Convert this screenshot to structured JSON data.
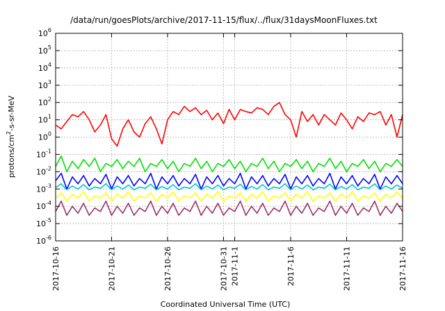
{
  "chart_data": {
    "type": "line",
    "title": "/data/run/goesPlots/archive/2017-11-15/flux/../flux/31daysMoonFluxes.txt",
    "xlabel": "Coordinated Universal Time (UTC)",
    "ylabel": {
      "prefix": "protons/cm",
      "sup": "2",
      "suffix": "-s-sr-MeV"
    },
    "y_scale": "log",
    "ylim": [
      1e-06,
      1000000.0
    ],
    "y_ticks": [
      {
        "base": "10",
        "exp": "-6",
        "value": 1e-06
      },
      {
        "base": "10",
        "exp": "-5",
        "value": 1e-05
      },
      {
        "base": "10",
        "exp": "-4",
        "value": 0.0001
      },
      {
        "base": "10",
        "exp": "-3",
        "value": 0.001
      },
      {
        "base": "10",
        "exp": "-2",
        "value": 0.01
      },
      {
        "base": "10",
        "exp": "-1",
        "value": 0.1
      },
      {
        "base": "10",
        "exp": "0",
        "value": 1
      },
      {
        "base": "10",
        "exp": "1",
        "value": 10
      },
      {
        "base": "10",
        "exp": "2",
        "value": 100
      },
      {
        "base": "10",
        "exp": "3",
        "value": 1000
      },
      {
        "base": "10",
        "exp": "4",
        "value": 10000
      },
      {
        "base": "10",
        "exp": "5",
        "value": 100000
      },
      {
        "base": "10",
        "exp": "6",
        "value": 1000000
      }
    ],
    "xlim": [
      "2017-10-16",
      "2017-11-16"
    ],
    "x_ticks": [
      "2017-10-16",
      "2017-10-21",
      "2017-10-26",
      "2017-10-31",
      "2017-11-1",
      "2017-11-6",
      "2017-11-11",
      "2017-11-16"
    ],
    "x_tick_days": [
      0,
      5,
      10,
      15,
      16,
      21,
      26,
      31
    ],
    "grid": true,
    "legend": "none",
    "series": [
      {
        "color": "#ff0000",
        "x_days": [
          0.0,
          0.5,
          1.0,
          1.5,
          2.0,
          2.5,
          3.0,
          3.5,
          4.0,
          4.5,
          5.0,
          5.5,
          6.0,
          6.5,
          7.0,
          7.5,
          8.0,
          8.5,
          9.0,
          9.5,
          10.0,
          10.5,
          11.0,
          11.5,
          12.0,
          12.5,
          13.0,
          13.5,
          14.0,
          14.5,
          15.0,
          15.5,
          16.0,
          16.5,
          17.0,
          17.5,
          18.0,
          18.5,
          19.0,
          19.5,
          20.0,
          20.5,
          21.0,
          21.5,
          22.0,
          22.5,
          23.0,
          23.5,
          24.0,
          24.5,
          25.0,
          25.5,
          26.0,
          26.5,
          27.0,
          27.5,
          28.0,
          28.5,
          29.0,
          29.5,
          30.0,
          30.5,
          31.0
        ],
        "values": [
          5,
          3,
          8,
          20,
          15,
          30,
          10,
          2,
          5,
          20,
          0.8,
          0.3,
          3,
          10,
          2,
          1,
          6,
          15,
          3,
          0.4,
          10,
          30,
          20,
          60,
          30,
          50,
          20,
          35,
          10,
          25,
          6,
          40,
          10,
          40,
          30,
          25,
          50,
          40,
          20,
          60,
          100,
          20,
          10,
          1,
          30,
          8,
          20,
          5,
          20,
          10,
          5,
          25,
          10,
          3,
          15,
          8,
          25,
          20,
          30,
          5,
          20,
          1,
          20
        ]
      },
      {
        "color": "#00e000",
        "x_days": [
          0.0,
          0.5,
          1.0,
          1.5,
          2.0,
          2.5,
          3.0,
          3.5,
          4.0,
          4.5,
          5.0,
          5.5,
          6.0,
          6.5,
          7.0,
          7.5,
          8.0,
          8.5,
          9.0,
          9.5,
          10.0,
          10.5,
          11.0,
          11.5,
          12.0,
          12.5,
          13.0,
          13.5,
          14.0,
          14.5,
          15.0,
          15.5,
          16.0,
          16.5,
          17.0,
          17.5,
          18.0,
          18.5,
          19.0,
          19.5,
          20.0,
          20.5,
          21.0,
          21.5,
          22.0,
          22.5,
          23.0,
          23.5,
          24.0,
          24.5,
          25.0,
          25.5,
          26.0,
          26.5,
          27.0,
          27.5,
          28.0,
          28.5,
          29.0,
          29.5,
          30.0,
          30.5,
          31.0
        ],
        "values": [
          0.02,
          0.08,
          0.01,
          0.04,
          0.015,
          0.05,
          0.02,
          0.06,
          0.01,
          0.03,
          0.02,
          0.05,
          0.015,
          0.04,
          0.02,
          0.06,
          0.01,
          0.03,
          0.02,
          0.05,
          0.015,
          0.04,
          0.01,
          0.03,
          0.02,
          0.06,
          0.015,
          0.04,
          0.01,
          0.03,
          0.02,
          0.05,
          0.015,
          0.04,
          0.01,
          0.03,
          0.02,
          0.06,
          0.015,
          0.04,
          0.01,
          0.03,
          0.02,
          0.05,
          0.015,
          0.04,
          0.01,
          0.03,
          0.02,
          0.06,
          0.015,
          0.04,
          0.01,
          0.03,
          0.02,
          0.05,
          0.015,
          0.04,
          0.01,
          0.03,
          0.02,
          0.05,
          0.02
        ]
      },
      {
        "color": "#0000ff",
        "x_days": [
          0.0,
          0.5,
          1.0,
          1.5,
          2.0,
          2.5,
          3.0,
          3.5,
          4.0,
          4.5,
          5.0,
          5.5,
          6.0,
          6.5,
          7.0,
          7.5,
          8.0,
          8.5,
          9.0,
          9.5,
          10.0,
          10.5,
          11.0,
          11.5,
          12.0,
          12.5,
          13.0,
          13.5,
          14.0,
          14.5,
          15.0,
          15.5,
          16.0,
          16.5,
          17.0,
          17.5,
          18.0,
          18.5,
          19.0,
          19.5,
          20.0,
          20.5,
          21.0,
          21.5,
          22.0,
          22.5,
          23.0,
          23.5,
          24.0,
          24.5,
          25.0,
          25.5,
          26.0,
          26.5,
          27.0,
          27.5,
          28.0,
          28.5,
          29.0,
          29.5,
          30.0,
          30.5,
          31.0
        ],
        "values": [
          0.003,
          0.008,
          0.001,
          0.005,
          0.002,
          0.006,
          0.0015,
          0.004,
          0.002,
          0.007,
          0.001,
          0.005,
          0.002,
          0.006,
          0.0015,
          0.004,
          0.002,
          0.008,
          0.001,
          0.005,
          0.002,
          0.006,
          0.0015,
          0.004,
          0.002,
          0.007,
          0.001,
          0.005,
          0.002,
          0.006,
          0.0015,
          0.004,
          0.002,
          0.008,
          0.001,
          0.005,
          0.002,
          0.006,
          0.0015,
          0.004,
          0.002,
          0.007,
          0.001,
          0.005,
          0.002,
          0.006,
          0.0015,
          0.004,
          0.002,
          0.008,
          0.001,
          0.005,
          0.002,
          0.006,
          0.0015,
          0.004,
          0.002,
          0.007,
          0.001,
          0.005,
          0.002,
          0.006,
          0.002
        ]
      },
      {
        "color": "#00c8c8",
        "x_days": [
          0.0,
          0.5,
          1.0,
          1.5,
          2.0,
          2.5,
          3.0,
          3.5,
          4.0,
          4.5,
          5.0,
          5.5,
          6.0,
          6.5,
          7.0,
          7.5,
          8.0,
          8.5,
          9.0,
          9.5,
          10.0,
          10.5,
          11.0,
          11.5,
          12.0,
          12.5,
          13.0,
          13.5,
          14.0,
          14.5,
          15.0,
          15.5,
          16.0,
          16.5,
          17.0,
          17.5,
          18.0,
          18.5,
          19.0,
          19.5,
          20.0,
          20.5,
          21.0,
          21.5,
          22.0,
          22.5,
          23.0,
          23.5,
          24.0,
          24.5,
          25.0,
          25.5,
          26.0,
          26.5,
          27.0,
          27.5,
          28.0,
          28.5,
          29.0,
          29.5,
          30.0,
          30.5,
          31.0
        ],
        "values": [
          0.0012,
          0.002,
          0.0009,
          0.0015,
          0.001,
          0.0018,
          0.0009,
          0.0013,
          0.0011,
          0.002,
          0.0009,
          0.0015,
          0.001,
          0.0017,
          0.0009,
          0.0013,
          0.0011,
          0.0019,
          0.0009,
          0.0014,
          0.001,
          0.0018,
          0.0009,
          0.0013,
          0.0011,
          0.002,
          0.0009,
          0.0015,
          0.001,
          0.0017,
          0.0009,
          0.0013,
          0.0011,
          0.0019,
          0.0009,
          0.0014,
          0.001,
          0.0018,
          0.0009,
          0.0013,
          0.0011,
          0.002,
          0.0009,
          0.0015,
          0.001,
          0.0017,
          0.0009,
          0.0013,
          0.0011,
          0.0019,
          0.0009,
          0.0014,
          0.001,
          0.0018,
          0.0009,
          0.0013,
          0.0011,
          0.002,
          0.0009,
          0.0015,
          0.001,
          0.0017,
          0.0011
        ]
      },
      {
        "color": "#ffff00",
        "x_days": [
          0.0,
          0.5,
          1.0,
          1.5,
          2.0,
          2.5,
          3.0,
          3.5,
          4.0,
          4.5,
          5.0,
          5.5,
          6.0,
          6.5,
          7.0,
          7.5,
          8.0,
          8.5,
          9.0,
          9.5,
          10.0,
          10.5,
          11.0,
          11.5,
          12.0,
          12.5,
          13.0,
          13.5,
          14.0,
          14.5,
          15.0,
          15.5,
          16.0,
          16.5,
          17.0,
          17.5,
          18.0,
          18.5,
          19.0,
          19.5,
          20.0,
          20.5,
          21.0,
          21.5,
          22.0,
          22.5,
          23.0,
          23.5,
          24.0,
          24.5,
          25.0,
          25.5,
          26.0,
          26.5,
          27.0,
          27.5,
          28.0,
          28.5,
          29.0,
          29.5,
          30.0,
          30.5,
          31.0
        ],
        "values": [
          0.0003,
          0.0006,
          0.0002,
          0.0005,
          0.0003,
          0.0007,
          0.0002,
          0.0004,
          0.0003,
          0.0006,
          0.0002,
          0.0005,
          0.0003,
          0.0007,
          0.0002,
          0.0004,
          0.0003,
          0.0006,
          0.0002,
          0.0005,
          0.0003,
          0.0007,
          0.0002,
          0.0004,
          0.0003,
          0.0006,
          0.0002,
          0.0005,
          0.0003,
          0.0007,
          0.0002,
          0.0004,
          0.0003,
          0.0006,
          0.0002,
          0.0005,
          0.0003,
          0.0007,
          0.0002,
          0.0004,
          0.0003,
          0.0006,
          0.0002,
          0.0005,
          0.0003,
          0.0007,
          0.0002,
          0.0004,
          0.0003,
          0.0006,
          0.0002,
          0.0005,
          0.0003,
          0.0007,
          0.0002,
          0.0004,
          0.0003,
          0.0006,
          0.0002,
          0.0005,
          0.0003,
          0.0007,
          0.0003
        ]
      },
      {
        "color": "#993366",
        "x_days": [
          0.0,
          0.5,
          1.0,
          1.5,
          2.0,
          2.5,
          3.0,
          3.5,
          4.0,
          4.5,
          5.0,
          5.5,
          6.0,
          6.5,
          7.0,
          7.5,
          8.0,
          8.5,
          9.0,
          9.5,
          10.0,
          10.5,
          11.0,
          11.5,
          12.0,
          12.5,
          13.0,
          13.5,
          14.0,
          14.5,
          15.0,
          15.5,
          16.0,
          16.5,
          17.0,
          17.5,
          18.0,
          18.5,
          19.0,
          19.5,
          20.0,
          20.5,
          21.0,
          21.5,
          22.0,
          22.5,
          23.0,
          23.5,
          24.0,
          24.5,
          25.0,
          25.5,
          26.0,
          26.5,
          27.0,
          27.5,
          28.0,
          28.5,
          29.0,
          29.5,
          30.0,
          30.5,
          31.0
        ],
        "values": [
          5e-05,
          0.0002,
          3e-05,
          0.0001,
          4e-05,
          0.00015,
          3e-05,
          8e-05,
          5e-05,
          0.0002,
          3e-05,
          0.0001,
          4e-05,
          0.00015,
          3e-05,
          8e-05,
          5e-05,
          0.0002,
          3e-05,
          0.0001,
          4e-05,
          0.00015,
          3e-05,
          8e-05,
          5e-05,
          0.0002,
          3e-05,
          0.0001,
          4e-05,
          0.00015,
          3e-05,
          8e-05,
          5e-05,
          0.0002,
          3e-05,
          0.0001,
          4e-05,
          0.00015,
          3e-05,
          8e-05,
          5e-05,
          0.0002,
          3e-05,
          0.0001,
          4e-05,
          0.00015,
          3e-05,
          8e-05,
          5e-05,
          0.0002,
          3e-05,
          0.0001,
          4e-05,
          0.00015,
          3e-05,
          8e-05,
          5e-05,
          0.0002,
          3e-05,
          0.0001,
          4e-05,
          0.00015,
          5e-05
        ]
      }
    ]
  }
}
